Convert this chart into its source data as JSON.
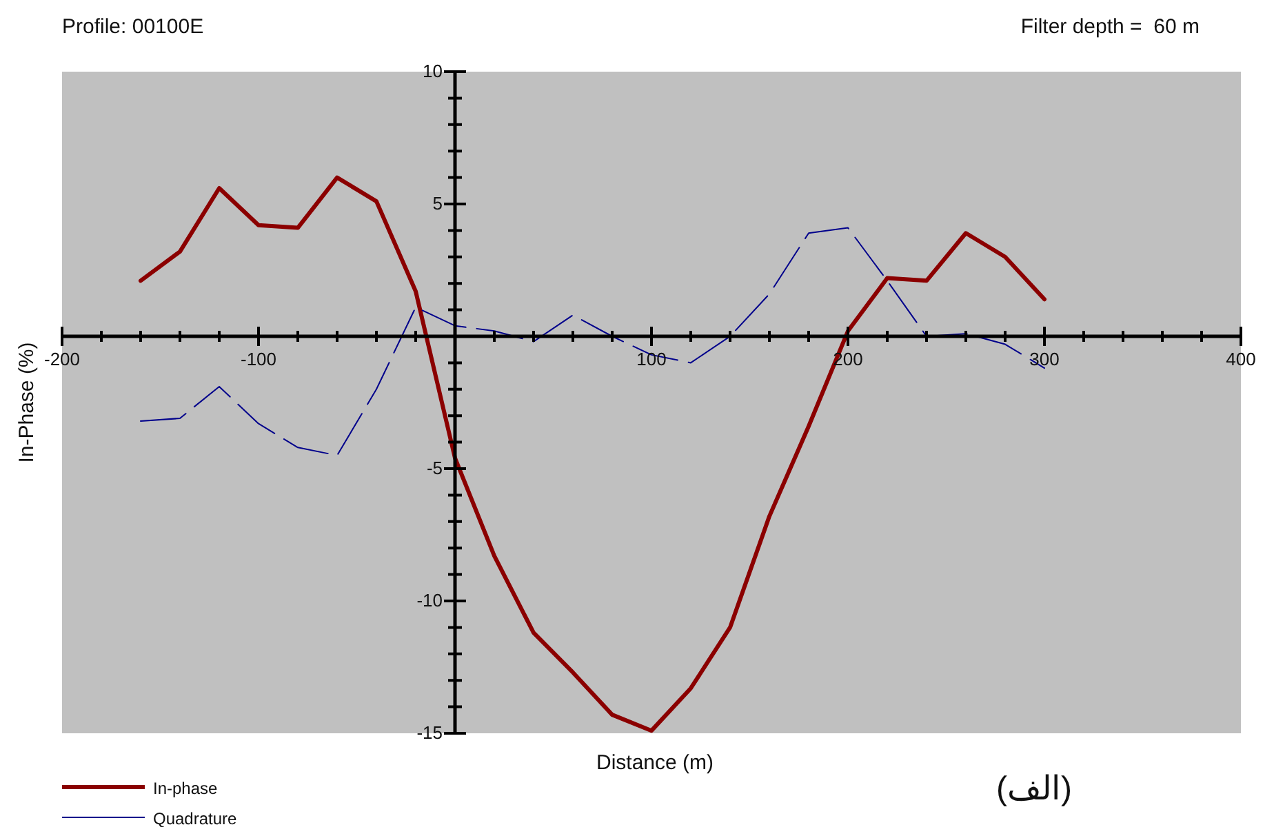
{
  "chart_data": {
    "type": "line",
    "title": "Profile: 00100E",
    "xlabel": "Distance (m)",
    "ylabel": "In-Phase (%)",
    "annotations": [
      "Filter depth =  60 m",
      "(الف)"
    ],
    "x": [
      -160,
      -140,
      -120,
      -100,
      -80,
      -60,
      -40,
      -20,
      0,
      20,
      40,
      60,
      80,
      100,
      120,
      140,
      160,
      180,
      200,
      220,
      240,
      260,
      280,
      300
    ],
    "series": [
      {
        "name": "In-phase",
        "color": "#8b0000",
        "line_style": "solid",
        "values": [
          2.1,
          3.2,
          5.6,
          4.2,
          4.1,
          6.0,
          5.1,
          1.7,
          -4.6,
          -8.3,
          -11.2,
          -12.7,
          -14.3,
          -14.9,
          -13.3,
          -11.0,
          -6.8,
          -3.4,
          0.2,
          2.2,
          2.1,
          3.9,
          3.0,
          1.4
        ]
      },
      {
        "name": "Quadrature",
        "color": "#00008b",
        "line_style": "dashed",
        "values": [
          -3.2,
          -3.1,
          -1.9,
          -3.3,
          -4.2,
          -4.5,
          -2.0,
          1.1,
          0.4,
          0.2,
          -0.2,
          0.8,
          0.0,
          -0.7,
          -1.0,
          0.0,
          1.6,
          3.9,
          4.1,
          2.1,
          0.0,
          0.1,
          -0.3,
          -1.2
        ]
      }
    ],
    "xlim": [
      -200,
      400
    ],
    "ylim": [
      -15,
      10
    ],
    "xticks": [
      -200,
      {
        "value": -180,
        "label": null
      },
      {
        "value": -160,
        "label": null
      },
      {
        "value": -140,
        "label": null
      },
      {
        "value": -120,
        "label": null
      },
      -100,
      {
        "value": -80,
        "label": null
      },
      {
        "value": -60,
        "label": null
      },
      {
        "value": -40,
        "label": null
      },
      {
        "value": -20,
        "label": null
      },
      {
        "value": 0,
        "label": null
      },
      {
        "value": 20,
        "label": null
      },
      {
        "value": 40,
        "label": null
      },
      {
        "value": 60,
        "label": null
      },
      {
        "value": 80,
        "label": null
      },
      100,
      {
        "value": 120,
        "label": null
      },
      {
        "value": 140,
        "label": null
      },
      {
        "value": 160,
        "label": null
      },
      {
        "value": 180,
        "label": null
      },
      200,
      {
        "value": 220,
        "label": null
      },
      {
        "value": 240,
        "label": null
      },
      {
        "value": 260,
        "label": null
      },
      {
        "value": 280,
        "label": null
      },
      300,
      {
        "value": 320,
        "label": null
      },
      {
        "value": 340,
        "label": null
      },
      {
        "value": 360,
        "label": null
      },
      {
        "value": 380,
        "label": null
      },
      400
    ],
    "yticks": [
      -15,
      {
        "value": -14,
        "label": null
      },
      {
        "value": -13,
        "label": null
      },
      {
        "value": -12,
        "label": null
      },
      {
        "value": -11,
        "label": null
      },
      -10,
      {
        "value": -9,
        "label": null
      },
      {
        "value": -8,
        "label": null
      },
      {
        "value": -7,
        "label": null
      },
      {
        "value": -6,
        "label": null
      },
      -5,
      {
        "value": -4,
        "label": null
      },
      {
        "value": -3,
        "label": null
      },
      {
        "value": -2,
        "label": null
      },
      {
        "value": -1,
        "label": null
      },
      {
        "value": 0,
        "label": null
      },
      {
        "value": 1,
        "label": null
      },
      {
        "value": 2,
        "label": null
      },
      {
        "value": 3,
        "label": null
      },
      {
        "value": 4,
        "label": null
      },
      5,
      {
        "value": 6,
        "label": null
      },
      {
        "value": 7,
        "label": null
      },
      {
        "value": 8,
        "label": null
      },
      {
        "value": 9,
        "label": null
      },
      10
    ],
    "grid": false,
    "legend": "bottom left"
  }
}
